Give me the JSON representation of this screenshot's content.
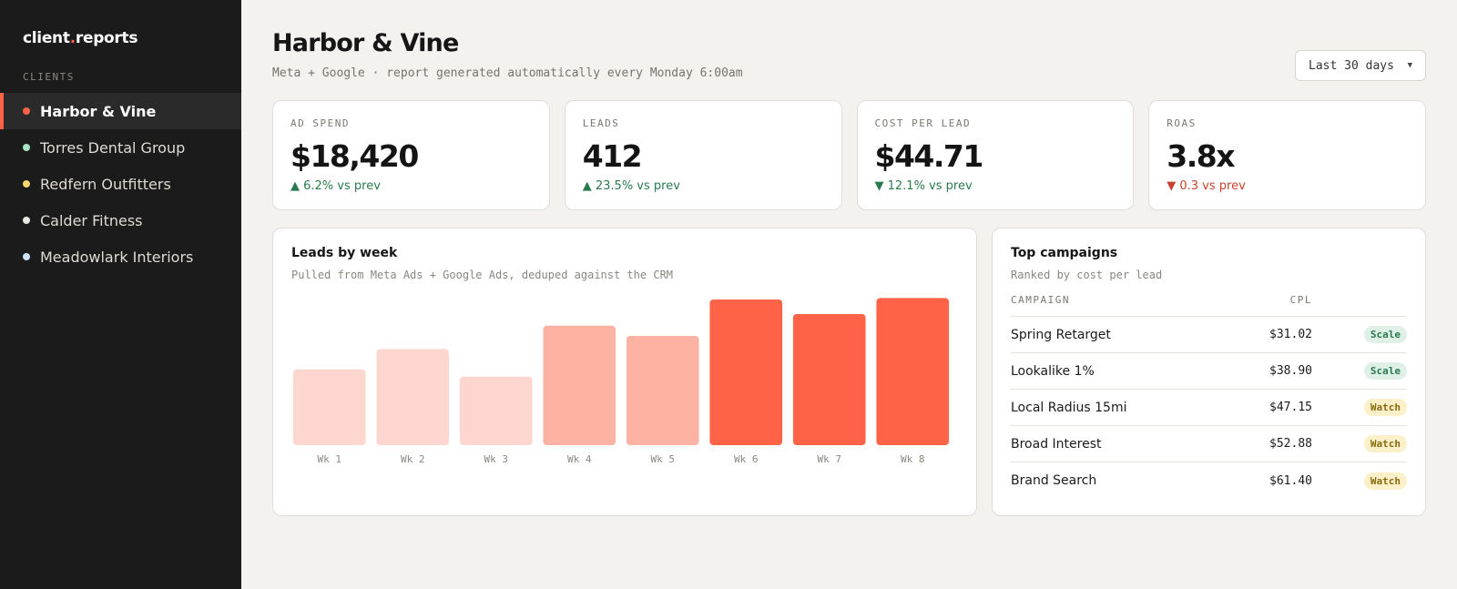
{
  "sidebar": {
    "brand_prefix": "client",
    "brand_dot": ".",
    "brand_suffix": "reports",
    "section_label": "CLIENTS",
    "clients": [
      {
        "label": "Harbor & Vine",
        "dot_color": "#ff6347",
        "active": true
      },
      {
        "label": "Torres Dental Group",
        "dot_color": "#a6e3c4",
        "active": false
      },
      {
        "label": "Redfern Outfitters",
        "dot_color": "#f5d76e",
        "active": false
      },
      {
        "label": "Calder Fitness",
        "dot_color": "#e8e6e1",
        "active": false
      },
      {
        "label": "Meadowlark Interiors",
        "dot_color": "#cfe3f5",
        "active": false
      }
    ]
  },
  "header": {
    "title": "Harbor & Vine",
    "subtitle": "Meta + Google · report generated automatically every Monday 6:00am",
    "range_label": "Last 30 days"
  },
  "kpis": [
    {
      "label": "AD SPEND",
      "value": "$18,420",
      "delta": "▲ 6.2% vs prev",
      "tone": "good"
    },
    {
      "label": "LEADS",
      "value": "412",
      "delta": "▲ 23.5% vs prev",
      "tone": "good"
    },
    {
      "label": "COST PER LEAD",
      "value": "$44.71",
      "delta": "▼ 12.1% vs prev",
      "tone": "good"
    },
    {
      "label": "ROAS",
      "value": "3.8x",
      "delta": "▼ 0.3 vs prev",
      "tone": "bad"
    }
  ],
  "leads_chart": {
    "title": "Leads by week",
    "subtitle": "Pulled from Meta Ads + Google Ads, deduped against the CRM"
  },
  "chart_data": {
    "type": "bar",
    "categories": [
      "Wk 1",
      "Wk 2",
      "Wk 3",
      "Wk 4",
      "Wk 5",
      "Wk 6",
      "Wk 7",
      "Wk 8"
    ],
    "values": [
      52,
      66,
      47,
      82,
      75,
      100,
      90,
      101
    ],
    "colors": [
      "#fdd7cf",
      "#fdd7cf",
      "#fdd7cf",
      "#fdb3a3",
      "#fdb3a3",
      "#ff6347",
      "#ff6347",
      "#ff6347"
    ],
    "ylim": [
      0,
      105
    ],
    "grid": false,
    "title": "",
    "xlabel": "",
    "ylabel": ""
  },
  "campaigns": {
    "title": "Top campaigns",
    "subtitle": "Ranked by cost per lead",
    "col_campaign": "CAMPAIGN",
    "col_cpl": "CPL",
    "rows": [
      {
        "name": "Spring Retarget",
        "cpl": "$31.02",
        "tag": "Scale",
        "tone": "scale"
      },
      {
        "name": "Lookalike 1%",
        "cpl": "$38.90",
        "tag": "Scale",
        "tone": "scale"
      },
      {
        "name": "Local Radius 15mi",
        "cpl": "$47.15",
        "tag": "Watch",
        "tone": "watch"
      },
      {
        "name": "Broad Interest",
        "cpl": "$52.88",
        "tag": "Watch",
        "tone": "watch"
      },
      {
        "name": "Brand Search",
        "cpl": "$61.40",
        "tag": "Watch",
        "tone": "watch"
      }
    ]
  }
}
